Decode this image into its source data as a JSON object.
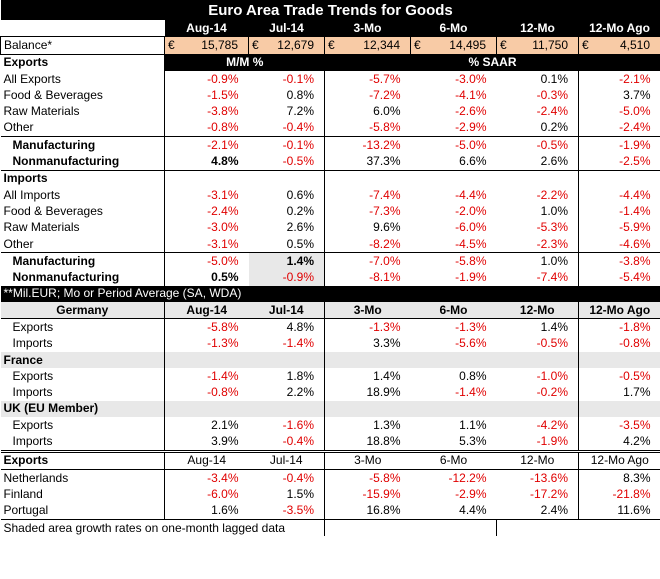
{
  "title": "Euro Area Trade Trends for Goods",
  "periods": [
    "Aug-14",
    "Jul-14",
    "3-Mo",
    "6-Mo",
    "12-Mo",
    "12-Mo Ago"
  ],
  "balance": {
    "label": "Balance*",
    "currency": "€",
    "values": [
      "15,785",
      "12,679",
      "12,344",
      "14,495",
      "11,750",
      "4,510"
    ]
  },
  "exports_block": {
    "label": "Exports",
    "mm_label": "M/M %",
    "saar_label": "% SAAR",
    "rows": [
      {
        "label": "All Exports",
        "values": [
          "-0.9%",
          "-0.1%",
          "-5.7%",
          "-3.0%",
          "0.1%",
          "-2.1%"
        ]
      },
      {
        "label": "Food & Beverages",
        "values": [
          "-1.5%",
          "0.8%",
          "-7.2%",
          "-4.1%",
          "-0.3%",
          "3.7%"
        ]
      },
      {
        "label": "Raw Materials",
        "values": [
          "-3.8%",
          "7.2%",
          "6.0%",
          "-2.6%",
          "-2.4%",
          "-5.0%"
        ]
      },
      {
        "label": "Other",
        "values": [
          "-0.8%",
          "-0.4%",
          "-5.8%",
          "-2.9%",
          "0.2%",
          "-2.4%"
        ]
      },
      {
        "label": "Manufacturing",
        "values": [
          "-2.1%",
          "-0.1%",
          "-13.2%",
          "-5.0%",
          "-0.5%",
          "-1.9%"
        ]
      },
      {
        "label": "Nonmanufacturing",
        "values": [
          "4.8%",
          "-0.5%",
          "37.3%",
          "6.6%",
          "2.6%",
          "-2.5%"
        ]
      }
    ]
  },
  "imports_block": {
    "label": "Imports",
    "rows": [
      {
        "label": "All Imports",
        "values": [
          "-3.1%",
          "0.6%",
          "-7.4%",
          "-4.4%",
          "-2.2%",
          "-4.4%"
        ]
      },
      {
        "label": "Food & Beverages",
        "values": [
          "-2.4%",
          "0.2%",
          "-7.3%",
          "-2.0%",
          "1.0%",
          "-1.4%"
        ]
      },
      {
        "label": "Raw Materials",
        "values": [
          "-3.0%",
          "2.6%",
          "9.6%",
          "-6.0%",
          "-5.3%",
          "-5.9%"
        ]
      },
      {
        "label": "Other",
        "values": [
          "-3.1%",
          "0.5%",
          "-8.2%",
          "-4.5%",
          "-2.3%",
          "-4.6%"
        ]
      },
      {
        "label": "Manufacturing",
        "values": [
          "-5.0%",
          "1.4%",
          "-7.0%",
          "-5.8%",
          "1.0%",
          "-3.8%"
        ]
      },
      {
        "label": "Nonmanufacturing",
        "values": [
          "0.5%",
          "-0.9%",
          "-8.1%",
          "-1.9%",
          "-7.4%",
          "-5.4%"
        ]
      }
    ]
  },
  "note1": "**Mil.EUR; Mo or Period Average (SA, WDA)",
  "countries": [
    {
      "name": "Germany",
      "rows": [
        {
          "label": "Exports",
          "values": [
            "-5.8%",
            "4.8%",
            "-1.3%",
            "-1.3%",
            "1.4%",
            "-1.8%"
          ]
        },
        {
          "label": "Imports",
          "values": [
            "-1.3%",
            "-1.4%",
            "3.3%",
            "-5.6%",
            "-0.5%",
            "-0.8%"
          ]
        }
      ]
    },
    {
      "name": "France",
      "rows": [
        {
          "label": "Exports",
          "values": [
            "-1.4%",
            "1.8%",
            "1.4%",
            "0.8%",
            "-1.0%",
            "-0.5%"
          ]
        },
        {
          "label": "Imports",
          "values": [
            "-0.8%",
            "2.2%",
            "18.9%",
            "-1.4%",
            "-0.2%",
            "1.7%"
          ]
        }
      ]
    },
    {
      "name": "UK (EU Member)",
      "rows": [
        {
          "label": "Exports",
          "values": [
            "2.1%",
            "-1.6%",
            "1.3%",
            "1.1%",
            "-4.2%",
            "-3.5%"
          ]
        },
        {
          "label": "Imports",
          "values": [
            "3.9%",
            "-0.4%",
            "18.8%",
            "5.3%",
            "-1.9%",
            "4.2%"
          ]
        }
      ]
    }
  ],
  "exports_countries": {
    "label": "Exports",
    "rows": [
      {
        "label": "Netherlands",
        "values": [
          "-3.4%",
          "-0.4%",
          "-5.8%",
          "-12.2%",
          "-13.6%",
          "8.3%"
        ]
      },
      {
        "label": "Finland",
        "values": [
          "-6.0%",
          "1.5%",
          "-15.9%",
          "-2.9%",
          "-17.2%",
          "-21.8%"
        ]
      },
      {
        "label": "Portugal",
        "values": [
          "1.6%",
          "-3.5%",
          "16.8%",
          "4.4%",
          "2.4%",
          "11.6%"
        ]
      }
    ]
  },
  "note2": "Shaded area growth rates on one-month lagged data"
}
